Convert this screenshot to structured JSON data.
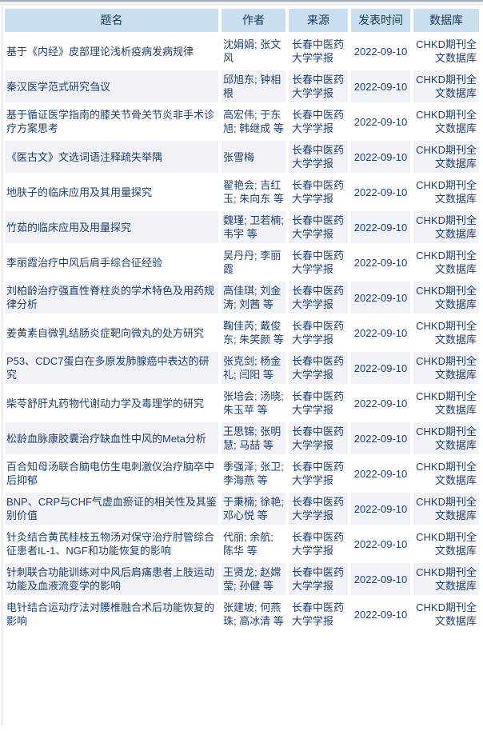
{
  "colors": {
    "header_bg": "#c9dff0",
    "header_text": "#17375e",
    "body_text": "#20406e",
    "alt_row_bg": "#f1f2f7"
  },
  "table": {
    "headers": [
      "题名",
      "作者",
      "来源",
      "发表时间",
      "数据库"
    ],
    "rows": [
      {
        "title": "基于《内经》皮部理论浅析疫病发病规律",
        "authors": "沈娟娟; 张文风",
        "source": "长春中医药大学学报",
        "date": "2022-09-10",
        "database": "CHKD期刊全文数据库"
      },
      {
        "title": "秦汉医学范式研究刍议",
        "authors": "邱旭东; 钟相根",
        "source": "长春中医药大学学报",
        "date": "2022-09-10",
        "database": "CHKD期刊全文数据库"
      },
      {
        "title": "基于循证医学指南的膝关节骨关节炎非手术诊疗方案思考",
        "authors": "高宏伟; 于东旭; 韩继成 等",
        "source": "长春中医药大学学报",
        "date": "2022-09-10",
        "database": "CHKD期刊全文数据库"
      },
      {
        "title": "《医古文》文选词语注释疏失举隅",
        "authors": "张雪梅",
        "source": "长春中医药大学学报",
        "date": "2022-09-10",
        "database": "CHKD期刊全文数据库"
      },
      {
        "title": "地肤子的临床应用及其用量探究",
        "authors": "翟艳会; 吉红玉; 朱向东 等",
        "source": "长春中医药大学学报",
        "date": "2022-09-10",
        "database": "CHKD期刊全文数据库"
      },
      {
        "title": "竹茹的临床应用及用量探究",
        "authors": "魏瑾; 卫若楠; 韦宇 等",
        "source": "长春中医药大学学报",
        "date": "2022-09-10",
        "database": "CHKD期刊全文数据库"
      },
      {
        "title": "李丽霞治疗中风后肩手综合征经验",
        "authors": "吴丹丹; 李丽霞",
        "source": "长春中医药大学学报",
        "date": "2022-09-10",
        "database": "CHKD期刊全文数据库"
      },
      {
        "title": "刘柏龄治疗强直性脊柱炎的学术特色及用药规律分析",
        "authors": "高佳琪; 刘金涛; 刘茜 等",
        "source": "长春中医药大学学报",
        "date": "2022-09-10",
        "database": "CHKD期刊全文数据库"
      },
      {
        "title": "姜黄素自微乳结肠炎症靶向微丸的处方研究",
        "authors": "鞠佳芮; 戴俊东; 朱笑颜 等",
        "source": "长春中医药大学学报",
        "date": "2022-09-10",
        "database": "CHKD期刊全文数据库"
      },
      {
        "title": "P53、CDC7蛋白在多原发肺腺癌中表达的研究",
        "authors": "张克剑; 杨金礼; 闫阳 等",
        "source": "长春中医药大学学报",
        "date": "2022-09-10",
        "database": "CHKD期刊全文数据库"
      },
      {
        "title": "柴苓舒肝丸药物代谢动力学及毒理学的研究",
        "authors": "张培会; 汤晓; 朱玉苹 等",
        "source": "长春中医药大学学报",
        "date": "2022-09-10",
        "database": "CHKD期刊全文数据库"
      },
      {
        "title": "松龄血脉康胶囊治疗缺血性中风的Meta分析",
        "authors": "王思锦; 张明慧; 马喆 等",
        "source": "长春中医药大学学报",
        "date": "2022-09-10",
        "database": "CHKD期刊全文数据库"
      },
      {
        "title": "百合知母汤联合脑电仿生电刺激仪治疗脑卒中后抑郁",
        "authors": "季强泽; 张卫; 李海燕 等",
        "source": "长春中医药大学学报",
        "date": "2022-09-10",
        "database": "CHKD期刊全文数据库"
      },
      {
        "title": "BNP、CRP与CHF气虚血瘀证的相关性及其鉴别价值",
        "authors": "于秉楠; 徐艳; 邓心悦 等",
        "source": "长春中医药大学学报",
        "date": "2022-09-10",
        "database": "CHKD期刊全文数据库"
      },
      {
        "title": "针灸结合黄芪桂枝五物汤对保守治疗肘管综合征患者IL-1、NGF和功能恢复的影响",
        "authors": "代丽; 余航; 陈华 等",
        "source": "长春中医药大学学报",
        "date": "2022-09-10",
        "database": "CHKD期刊全文数据库"
      },
      {
        "title": "针刺联合功能训练对中风后肩痛患者上肢运动功能及血液流变学的影响",
        "authors": "王贤龙; 赵嫦莹; 孙健 等",
        "source": "长春中医药大学学报",
        "date": "2022-09-10",
        "database": "CHKD期刊全文数据库"
      },
      {
        "title": "电针结合运动疗法对腰椎融合术后功能恢复的影响",
        "authors": "张建坡; 何燕珠; 高冰清 等",
        "source": "长春中医药大学学报",
        "date": "2022-09-10",
        "database": "CHKD期刊全文数据库"
      }
    ]
  }
}
